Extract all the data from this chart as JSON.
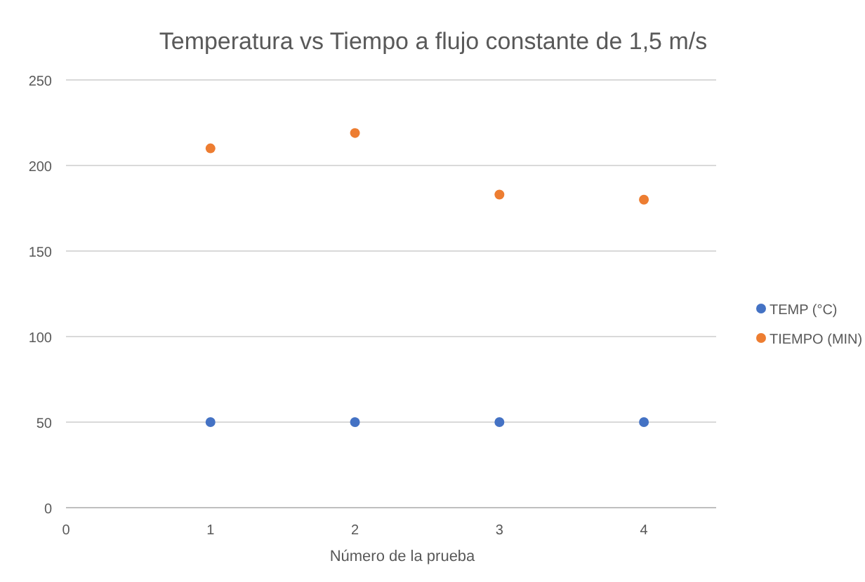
{
  "chart_data": {
    "type": "scatter",
    "title": "Temperatura vs Tiempo a flujo constante de 1,5 m/s",
    "xlabel": "Número de la prueba",
    "x": [
      1,
      2,
      3,
      4
    ],
    "series": [
      {
        "name": "TEMP (°C)",
        "color": "#4472c4",
        "values": [
          50,
          50,
          50,
          50
        ]
      },
      {
        "name": "TIEMPO (MIN)",
        "color": "#ed7d31",
        "values": [
          210,
          219,
          183,
          180
        ]
      }
    ],
    "xlim": [
      0,
      4.5
    ],
    "xticks": [
      0,
      1,
      2,
      3,
      4
    ],
    "ylim": [
      0,
      250
    ],
    "yticks": [
      0,
      50,
      100,
      150,
      200,
      250
    ],
    "grid": "y",
    "legend": "right",
    "marker": "circle"
  }
}
